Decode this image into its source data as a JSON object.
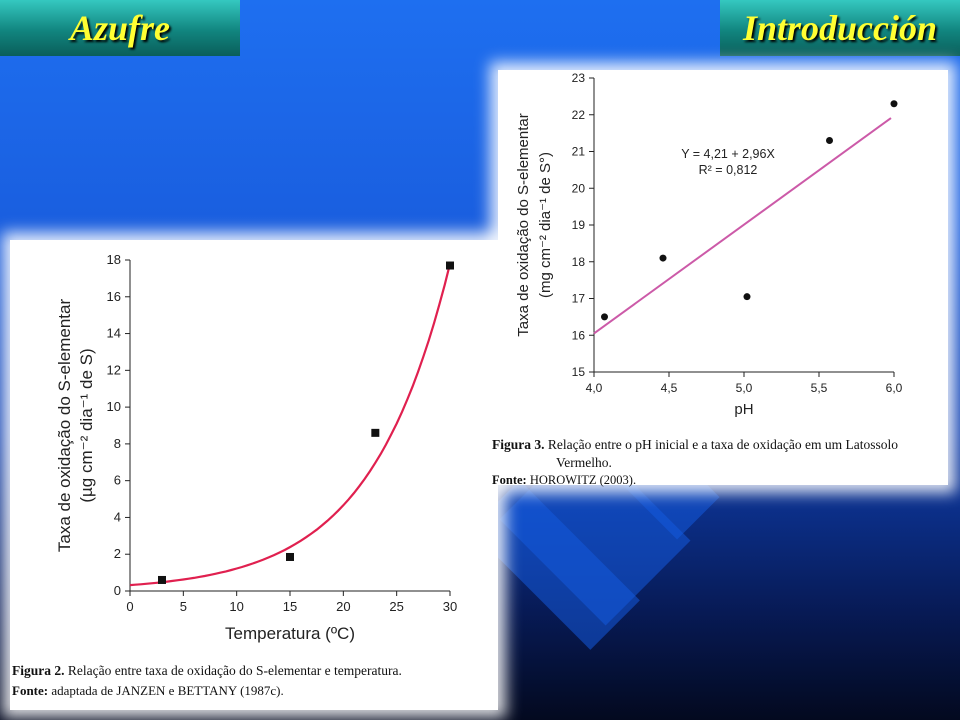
{
  "header": {
    "left_title": "Azufre",
    "right_title": "Introducción"
  },
  "colors": {
    "title_text": "#ffff33",
    "tab": "#11857f",
    "fit_line_fig2": "#e0204f",
    "fit_line_fig3": "#cc5aa8",
    "points": "#111111"
  },
  "figure2": {
    "caption_label": "Figura 2.",
    "caption_text": " Relação entre taxa de oxidação do S-elementar e temperatura.",
    "source_label": "Fonte:",
    "source_text": " adaptada de JANZEN e BETTANY (1987c)."
  },
  "figure3": {
    "caption_label": "Figura 3.",
    "caption_text": " Relação entre o pH inicial e a taxa de oxidação em um Latossolo",
    "caption_text2": "Vermelho.",
    "source_label": "Fonte:",
    "source_text": " HOROWITZ (2003)."
  },
  "chart_data": [
    {
      "type": "scatter",
      "xlabel": "Temperatura (ºC)",
      "ylabel_line1": "Taxa de oxidação do S-elementar",
      "ylabel_line2": "(µg cm⁻² dia⁻¹ de S)",
      "xlim": [
        0,
        30
      ],
      "ylim": [
        0,
        18
      ],
      "xticks": [
        "0",
        "5",
        "10",
        "15",
        "20",
        "25",
        "30"
      ],
      "yticks": [
        "0",
        "2",
        "4",
        "6",
        "8",
        "10",
        "12",
        "14",
        "16",
        "18"
      ],
      "points": [
        {
          "x": 3,
          "y": 0.6
        },
        {
          "x": 15,
          "y": 1.85
        },
        {
          "x": 23,
          "y": 8.6
        },
        {
          "x": 30,
          "y": 17.7
        }
      ],
      "fit": {
        "type": "exponential"
      },
      "grid": false
    },
    {
      "type": "scatter",
      "xlabel": "pH",
      "ylabel_line1": "Taxa de oxidação do S-elementar",
      "ylabel_line2": "(mg cm⁻² dia⁻¹ de S°)",
      "xlim": [
        4.0,
        6.0
      ],
      "ylim": [
        15,
        23
      ],
      "xticks": [
        "4,0",
        "4,5",
        "5,0",
        "5,5",
        "6,0"
      ],
      "yticks": [
        "15",
        "16",
        "17",
        "18",
        "19",
        "20",
        "21",
        "22",
        "23"
      ],
      "points": [
        {
          "x": 4.07,
          "y": 16.5
        },
        {
          "x": 4.46,
          "y": 18.1
        },
        {
          "x": 5.02,
          "y": 17.05
        },
        {
          "x": 5.57,
          "y": 21.3
        },
        {
          "x": 6.0,
          "y": 22.3
        }
      ],
      "equation": "Y = 4,21 + 2,96X",
      "r2_label": "R² = 0,812",
      "fit": {
        "type": "linear",
        "intercept": 4.21,
        "slope": 2.96,
        "x_range": [
          4.0,
          5.98
        ]
      },
      "grid": false
    }
  ]
}
